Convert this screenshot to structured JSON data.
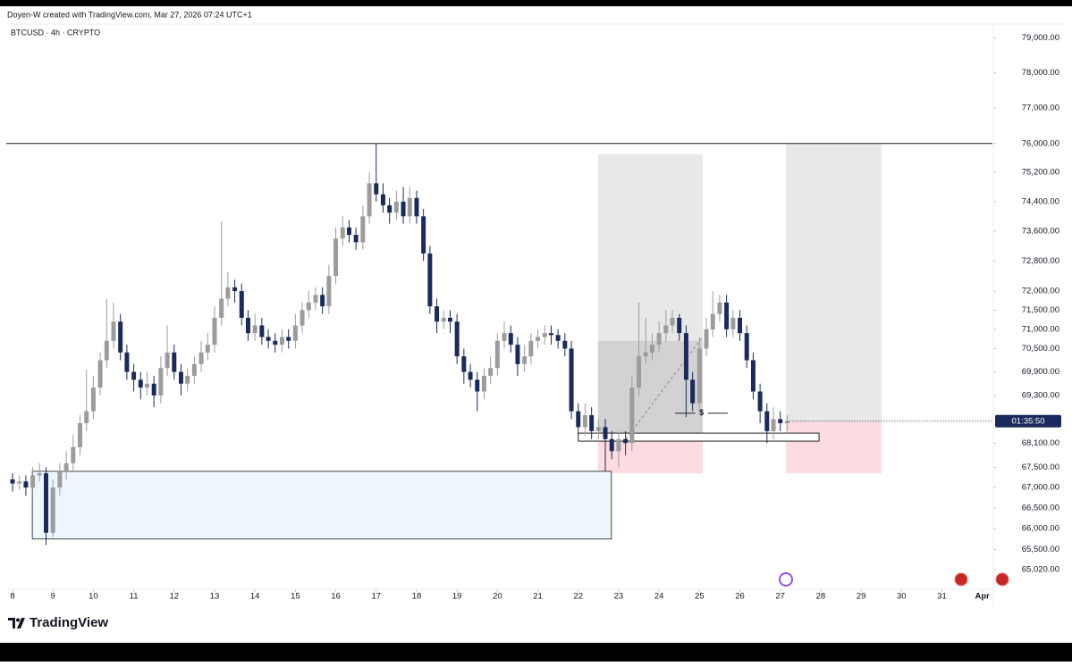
{
  "header": {
    "credit": "Doyen-W created with TradingView.com, Mar 27, 2026 07:24 UTC+1",
    "brand": "TradingView"
  },
  "chart_data": {
    "type": "candlestick",
    "title": "BTCUSD · 4h · CRYPTO",
    "log_scale": true,
    "up_color": "#9c9c9c",
    "down_color": "#1b2a5c",
    "x": [
      0,
      0.17,
      0.33,
      0.5,
      0.67,
      0.83,
      1,
      1.17,
      1.33,
      1.5,
      1.67,
      1.83,
      2,
      2.17,
      2.33,
      2.5,
      2.67,
      2.83,
      3,
      3.17,
      3.33,
      3.5,
      3.67,
      3.83,
      4,
      4.17,
      4.33,
      4.5,
      4.67,
      4.83,
      5,
      5.17,
      5.33,
      5.5,
      5.67,
      5.83,
      6,
      6.17,
      6.33,
      6.5,
      6.67,
      6.83,
      7,
      7.17,
      7.33,
      7.5,
      7.67,
      7.83,
      8,
      8.17,
      8.33,
      8.5,
      8.67,
      8.83,
      9,
      9.17,
      9.33,
      9.5,
      9.67,
      9.83,
      10,
      10.17,
      10.33,
      10.5,
      10.67,
      10.83,
      11,
      11.17,
      11.33,
      11.5,
      11.67,
      11.83,
      12,
      12.17,
      12.33,
      12.5,
      12.67,
      12.83,
      13,
      13.17,
      13.33,
      13.5,
      13.67,
      13.83,
      14,
      14.17,
      14.33,
      14.5,
      14.67,
      14.83,
      15,
      15.17,
      15.33,
      15.5,
      15.67,
      15.83,
      16,
      16.17,
      16.33,
      16.5,
      16.67,
      16.83,
      17,
      17.17,
      17.33,
      17.5,
      17.67,
      17.83,
      18,
      18.17,
      18.33,
      18.5,
      18.67,
      18.83,
      19,
      19.17
    ],
    "open": [
      67200,
      67100,
      67150,
      67000,
      67300,
      67350,
      65900,
      67000,
      67400,
      67600,
      68000,
      68600,
      68900,
      69500,
      70200,
      70700,
      71200,
      70400,
      69900,
      69700,
      69500,
      69600,
      69300,
      70000,
      70400,
      69900,
      69600,
      69800,
      70100,
      70400,
      70600,
      71300,
      71800,
      72100,
      72000,
      71300,
      70900,
      71100,
      70800,
      70700,
      70600,
      70800,
      70700,
      71100,
      71500,
      71700,
      71900,
      71600,
      72400,
      73400,
      73700,
      73500,
      73300,
      74000,
      74900,
      74600,
      74300,
      74100,
      74400,
      74000,
      74500,
      74000,
      73000,
      71600,
      71200,
      71300,
      71200,
      70300,
      69900,
      69700,
      69400,
      69800,
      70000,
      70700,
      70900,
      70600,
      70100,
      70300,
      70700,
      70800,
      70900,
      70850,
      70700,
      70500,
      68900,
      68500,
      68800,
      68400,
      68500,
      68200,
      67900,
      68200,
      68100,
      69500,
      70300,
      70400,
      70600,
      70900,
      71100,
      71300,
      70900,
      69700,
      69100,
      70500,
      71000,
      71400,
      71700,
      71000,
      71300,
      70900,
      70200,
      69400,
      68900,
      68400,
      68700,
      68600
    ],
    "high": [
      67350,
      67300,
      67300,
      67500,
      67600,
      67500,
      67200,
      67600,
      67900,
      68300,
      68800,
      69950,
      69800,
      70400,
      71800,
      71700,
      71400,
      70600,
      70100,
      69900,
      69900,
      69800,
      70300,
      71100,
      70600,
      70100,
      70000,
      70300,
      70700,
      70900,
      71600,
      73850,
      72500,
      72300,
      72200,
      71500,
      71400,
      71300,
      71000,
      70900,
      71000,
      71000,
      71400,
      71700,
      72000,
      72100,
      72100,
      72700,
      73700,
      74000,
      73900,
      73700,
      74300,
      75200,
      76000,
      74900,
      74500,
      74700,
      74800,
      74800,
      74700,
      74200,
      73200,
      71800,
      71500,
      71500,
      71400,
      70500,
      70100,
      69900,
      70000,
      70300,
      70900,
      71200,
      71100,
      70800,
      70600,
      70900,
      71000,
      71100,
      71100,
      71000,
      70900,
      70700,
      69100,
      69100,
      69000,
      68700,
      68700,
      68400,
      68400,
      68400,
      69800,
      71700,
      71300,
      70900,
      71200,
      71500,
      71500,
      71400,
      71100,
      69900,
      70800,
      71300,
      72000,
      71900,
      71900,
      71500,
      71500,
      71100,
      70400,
      69600,
      69100,
      69000,
      68900,
      68800
    ],
    "low": [
      66900,
      66950,
      66800,
      66900,
      67150,
      65600,
      65800,
      66800,
      67200,
      67400,
      67800,
      68400,
      68700,
      69300,
      70000,
      70500,
      70200,
      69700,
      69400,
      69200,
      69300,
      69000,
      69100,
      69800,
      69700,
      69300,
      69400,
      69600,
      69900,
      70200,
      70400,
      71100,
      71600,
      71700,
      71100,
      70700,
      70700,
      70600,
      70500,
      70400,
      70400,
      70500,
      70500,
      70900,
      71300,
      71500,
      71400,
      71400,
      72200,
      73200,
      73300,
      73100,
      73100,
      73800,
      74400,
      74100,
      73800,
      73900,
      73800,
      73800,
      73800,
      72800,
      71400,
      70900,
      71000,
      70900,
      70100,
      69600,
      69500,
      68900,
      69200,
      69600,
      69800,
      70500,
      70400,
      69800,
      69900,
      70100,
      70500,
      70600,
      70600,
      70500,
      70300,
      68700,
      68300,
      68300,
      68200,
      68200,
      67400,
      67700,
      67500,
      67800,
      67900,
      69300,
      70100,
      70200,
      70400,
      70700,
      70900,
      70700,
      68750,
      68900,
      68900,
      70300,
      70800,
      71200,
      70800,
      70800,
      70700,
      70000,
      69200,
      68600,
      68100,
      68200,
      68400,
      68400
    ],
    "close": [
      67100,
      67150,
      67000,
      67300,
      67350,
      65900,
      67000,
      67400,
      67600,
      68000,
      68600,
      68900,
      69500,
      70200,
      70700,
      71200,
      70400,
      69900,
      69700,
      69500,
      69600,
      69300,
      70000,
      70400,
      69900,
      69600,
      69800,
      70100,
      70400,
      70600,
      71300,
      71800,
      72100,
      72000,
      71300,
      70900,
      71100,
      70800,
      70700,
      70600,
      70800,
      70700,
      71100,
      71500,
      71700,
      71900,
      71600,
      72400,
      73400,
      73700,
      73500,
      73300,
      74000,
      74900,
      74600,
      74300,
      74100,
      74400,
      74000,
      74500,
      74000,
      73000,
      71600,
      71200,
      71300,
      71200,
      70300,
      69900,
      69700,
      69400,
      69800,
      70000,
      70700,
      70900,
      70600,
      70100,
      70300,
      70700,
      70800,
      70900,
      70850,
      70700,
      70500,
      68900,
      68500,
      68800,
      68400,
      68500,
      68200,
      67900,
      68200,
      68100,
      69500,
      70300,
      70400,
      70600,
      70900,
      71100,
      71300,
      70900,
      69700,
      69100,
      70500,
      71000,
      71400,
      71700,
      71000,
      71300,
      70900,
      70200,
      69400,
      68900,
      68400,
      68700,
      68600,
      68650
    ],
    "xlim": [
      -0.155,
      24.25
    ],
    "ylim": [
      64550,
      79400
    ],
    "xticks": [
      {
        "value": 0,
        "label": "8"
      },
      {
        "value": 1,
        "label": "9"
      },
      {
        "value": 2,
        "label": "10"
      },
      {
        "value": 3,
        "label": "11"
      },
      {
        "value": 4,
        "label": "12"
      },
      {
        "value": 5,
        "label": "13"
      },
      {
        "value": 6,
        "label": "14"
      },
      {
        "value": 7,
        "label": "15"
      },
      {
        "value": 8,
        "label": "16"
      },
      {
        "value": 9,
        "label": "17"
      },
      {
        "value": 10,
        "label": "18"
      },
      {
        "value": 11,
        "label": "19"
      },
      {
        "value": 12,
        "label": "20"
      },
      {
        "value": 13,
        "label": "21"
      },
      {
        "value": 14,
        "label": "22"
      },
      {
        "value": 15,
        "label": "23"
      },
      {
        "value": 16,
        "label": "24"
      },
      {
        "value": 17,
        "label": "25"
      },
      {
        "value": 18,
        "label": "26"
      },
      {
        "value": 19,
        "label": "27"
      },
      {
        "value": 20,
        "label": "28"
      },
      {
        "value": 21,
        "label": "29"
      },
      {
        "value": 22,
        "label": "30"
      },
      {
        "value": 23,
        "label": "31"
      },
      {
        "value": 24,
        "label": "Apr"
      }
    ],
    "yticks": [
      {
        "value": 79000,
        "label": "79,000.00"
      },
      {
        "value": 78000,
        "label": "78,000.00"
      },
      {
        "value": 77000,
        "label": "77,000.00"
      },
      {
        "value": 76000,
        "label": "76,000.00"
      },
      {
        "value": 75200,
        "label": "75,200.00"
      },
      {
        "value": 74400,
        "label": "74,400.00"
      },
      {
        "value": 73600,
        "label": "73,600.00"
      },
      {
        "value": 72800,
        "label": "72,800.00"
      },
      {
        "value": 72000,
        "label": "72,000.00"
      },
      {
        "value": 71500,
        "label": "71,500.00"
      },
      {
        "value": 71000,
        "label": "71,000.00"
      },
      {
        "value": 70500,
        "label": "70,500.00"
      },
      {
        "value": 69900,
        "label": "69,900.00"
      },
      {
        "value": 69300,
        "label": "69,300.00"
      },
      {
        "value": 68100,
        "label": "68,100.00"
      },
      {
        "value": 67500,
        "label": "67,500.00"
      },
      {
        "value": 67000,
        "label": "67,000.00"
      },
      {
        "value": 66500,
        "label": "66,500.00"
      },
      {
        "value": 66000,
        "label": "66,000.00"
      },
      {
        "value": 65500,
        "label": "65,500.00"
      },
      {
        "value": 65020,
        "label": "65,020.00"
      }
    ],
    "countdown": "01:35:50",
    "horizontal_line": 76000,
    "zones": [
      {
        "x": [
          14.49,
          17.08
        ],
        "y": [
          68200,
          75700
        ],
        "color": "#e8e8e8"
      },
      {
        "x": [
          14.49,
          17.08
        ],
        "y": [
          68200,
          70700
        ],
        "color": "#d2d2d2"
      },
      {
        "x": [
          14.49,
          17.08
        ],
        "y": [
          67350,
          68200
        ],
        "color": "#fcdce0"
      },
      {
        "x": [
          19.14,
          21.5
        ],
        "y": [
          68650,
          76000
        ],
        "color": "#e8e8e8"
      },
      {
        "x": [
          19.14,
          21.5
        ],
        "y": [
          67350,
          68650
        ],
        "color": "#fcdce0"
      },
      {
        "x": [
          0.49,
          14.82
        ],
        "y": [
          65750,
          67400
        ],
        "color": "#eef7fc",
        "border": "#444444"
      },
      {
        "x": [
          14.0,
          19.96
        ],
        "y": [
          68150,
          68350
        ],
        "color": "#ffffff",
        "border": "#222222"
      }
    ],
    "trend_line": {
      "x": [
        15.18,
        17.08
      ],
      "y": [
        68200,
        70800
      ]
    },
    "level_marker": {
      "x": [
        16.4,
        17.7
      ],
      "y": 68850,
      "label": "$"
    }
  }
}
